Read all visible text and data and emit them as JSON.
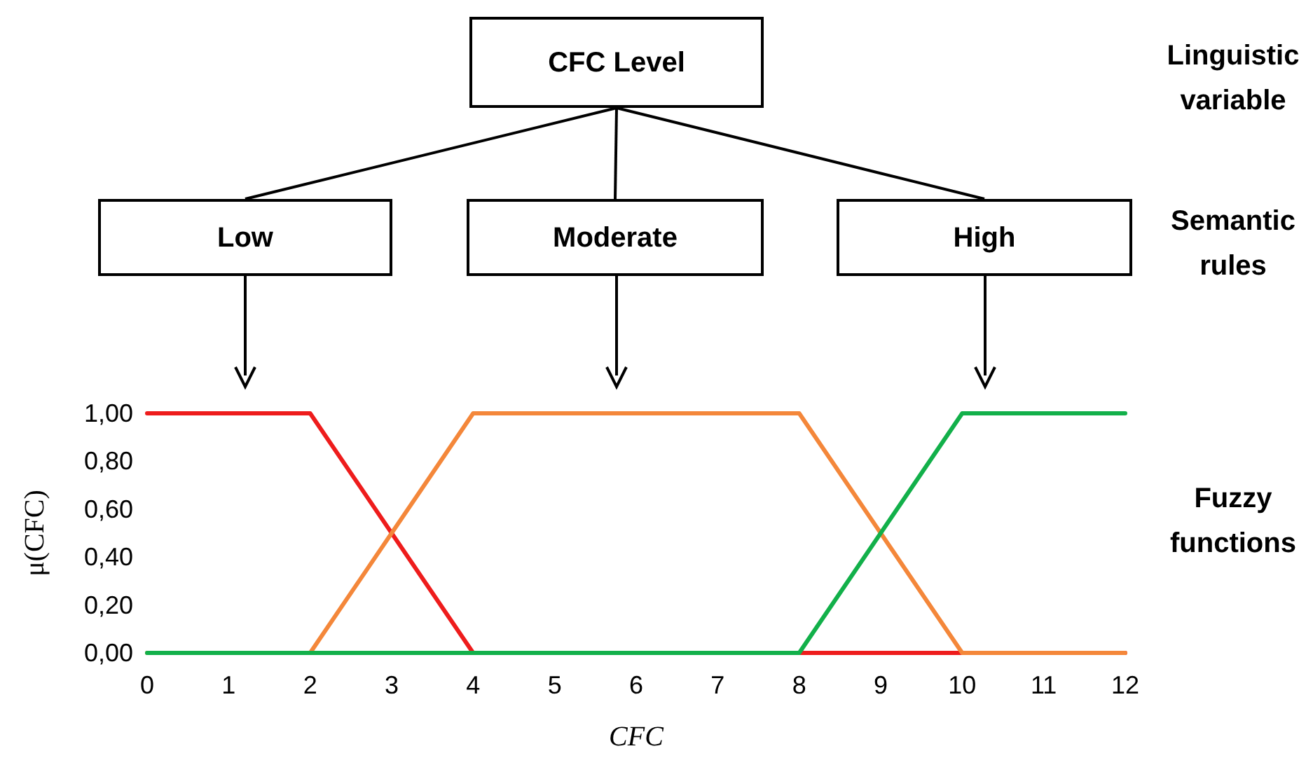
{
  "chart_data": {
    "type": "line",
    "xlabel": "CFC",
    "ylabel": "μ(CFC)",
    "annotations": [
      "CFC Level",
      "Low",
      "Moderate",
      "High",
      "Linguistic variable",
      "Semantic rules",
      "Fuzzy functions"
    ],
    "series": [
      {
        "color": "#ee1c1c",
        "x": [
          0,
          2,
          4,
          12
        ],
        "values": [
          1,
          1,
          0,
          0
        ]
      },
      {
        "color": "#f4873a",
        "x": [
          0,
          2,
          4,
          8,
          10,
          12
        ],
        "values": [
          0,
          0,
          1,
          1,
          0,
          0
        ]
      },
      {
        "color": "#12b04a",
        "x": [
          0,
          8,
          10,
          12
        ],
        "values": [
          0,
          0,
          1,
          1
        ]
      }
    ],
    "xlim": [
      0,
      12
    ],
    "xticks": [
      0,
      1,
      2,
      3,
      4,
      5,
      6,
      7,
      8,
      9,
      10,
      11,
      12
    ],
    "ylim": [
      0,
      1
    ],
    "yticks": [
      {
        "value": 0,
        "label": "0,00"
      },
      {
        "value": 0.2,
        "label": "0,20"
      },
      {
        "value": 0.4,
        "label": "0,40"
      },
      {
        "value": 0.6,
        "label": "0,60"
      },
      {
        "value": 0.8,
        "label": "0,80"
      },
      {
        "value": 1,
        "label": "1,00"
      }
    ],
    "grid": false,
    "marker": "none",
    "line_style": "solid"
  }
}
